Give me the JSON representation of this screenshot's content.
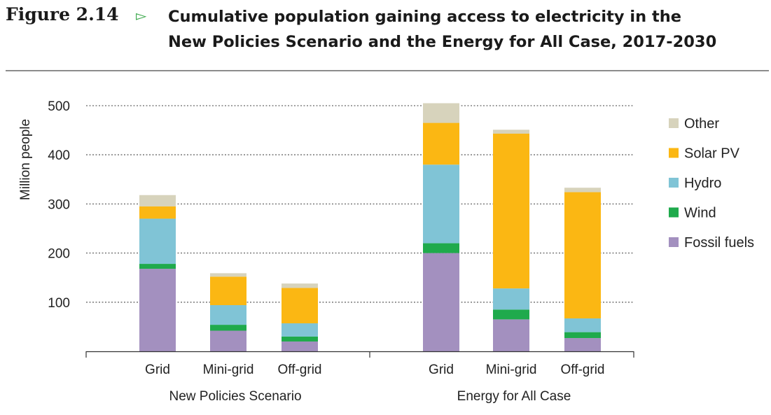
{
  "figure": {
    "label": "Figure 2.14",
    "title_line1": "Cumulative population gaining access to electricity in the",
    "title_line2": "New Policies Scenario and the Energy for All Case, 2017-2030"
  },
  "colors": {
    "Fossil fuels": "#a390bf",
    "Wind": "#1faa4c",
    "Hydro": "#80c4d6",
    "Solar PV": "#fbb713",
    "Other": "#d7d3bc",
    "grid": "#808080",
    "axis": "#333333"
  },
  "chart_data": {
    "type": "bar",
    "stacked": true,
    "ylabel": "Million people",
    "ylim": [
      0,
      500
    ],
    "yticks": [
      100,
      200,
      300,
      400,
      500
    ],
    "grid": "horizontal dotted",
    "legend_position": "right",
    "groups": [
      {
        "name": "New Policies Scenario",
        "categories": [
          "Grid",
          "Mini-grid",
          "Off-grid"
        ]
      },
      {
        "name": "Energy for All  Case",
        "categories": [
          "Grid",
          "Mini-grid",
          "Off-grid"
        ]
      }
    ],
    "legend_order": [
      "Other",
      "Solar PV",
      "Hydro",
      "Wind",
      "Fossil fuels"
    ],
    "series": [
      {
        "name": "Fossil fuels",
        "values": [
          168,
          42,
          20,
          200,
          65,
          27
        ]
      },
      {
        "name": "Wind",
        "values": [
          10,
          12,
          10,
          20,
          20,
          12
        ]
      },
      {
        "name": "Hydro",
        "values": [
          92,
          40,
          27,
          160,
          43,
          28
        ]
      },
      {
        "name": "Solar PV",
        "values": [
          25,
          58,
          72,
          85,
          315,
          257
        ]
      },
      {
        "name": "Other",
        "values": [
          23,
          7,
          9,
          40,
          8,
          9
        ]
      }
    ]
  }
}
